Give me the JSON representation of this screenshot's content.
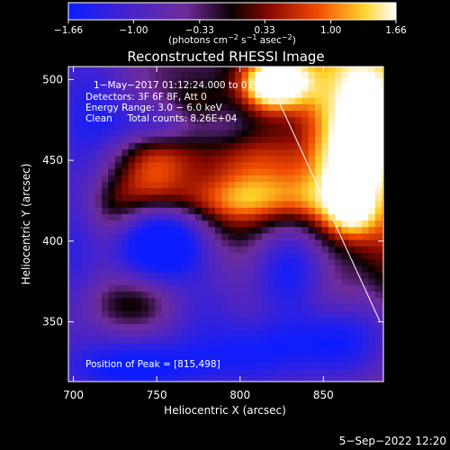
{
  "chart_data": {
    "type": "heatmap",
    "title": "Reconstructed RHESSI Image",
    "xlabel": "Heliocentric X (arcsec)",
    "ylabel": "Heliocentric Y (arcsec)",
    "xlim": [
      697,
      886
    ],
    "ylim": [
      313,
      508
    ],
    "xticks": [
      700,
      750,
      800,
      850
    ],
    "yticks": [
      350,
      400,
      450,
      500
    ],
    "colorbar": {
      "ticks": [
        -1.66,
        -1.0,
        -0.33,
        0.33,
        1.0,
        1.66
      ],
      "tick_labels": [
        "−1.66",
        "−1.00",
        "−0.33",
        "0.33",
        "1.00",
        "1.66"
      ],
      "unit_pre": "(photons cm",
      "unit_e1": "−2",
      "unit_mid1": " s",
      "unit_e2": "−1",
      "unit_mid2": " asec",
      "unit_e3": "−2",
      "unit_post": ")"
    },
    "annotation": {
      "time": "1−May−2017 01:12:24.000 to 01:13:28.000",
      "detectors": "Detectors: 3F 6F 8F, Att 0",
      "energy": "Energy Range: 3.0 − 6.0 keV",
      "clean": "Clean     Total counts: 8.26E+04",
      "peak": "Position of Peak = [815,498]"
    },
    "peak": [
      815,
      498
    ],
    "limb_line": [
      [
        815,
        505
      ],
      [
        884,
        350
      ]
    ],
    "date_stamp": "5−Sep−2022 12:20"
  }
}
